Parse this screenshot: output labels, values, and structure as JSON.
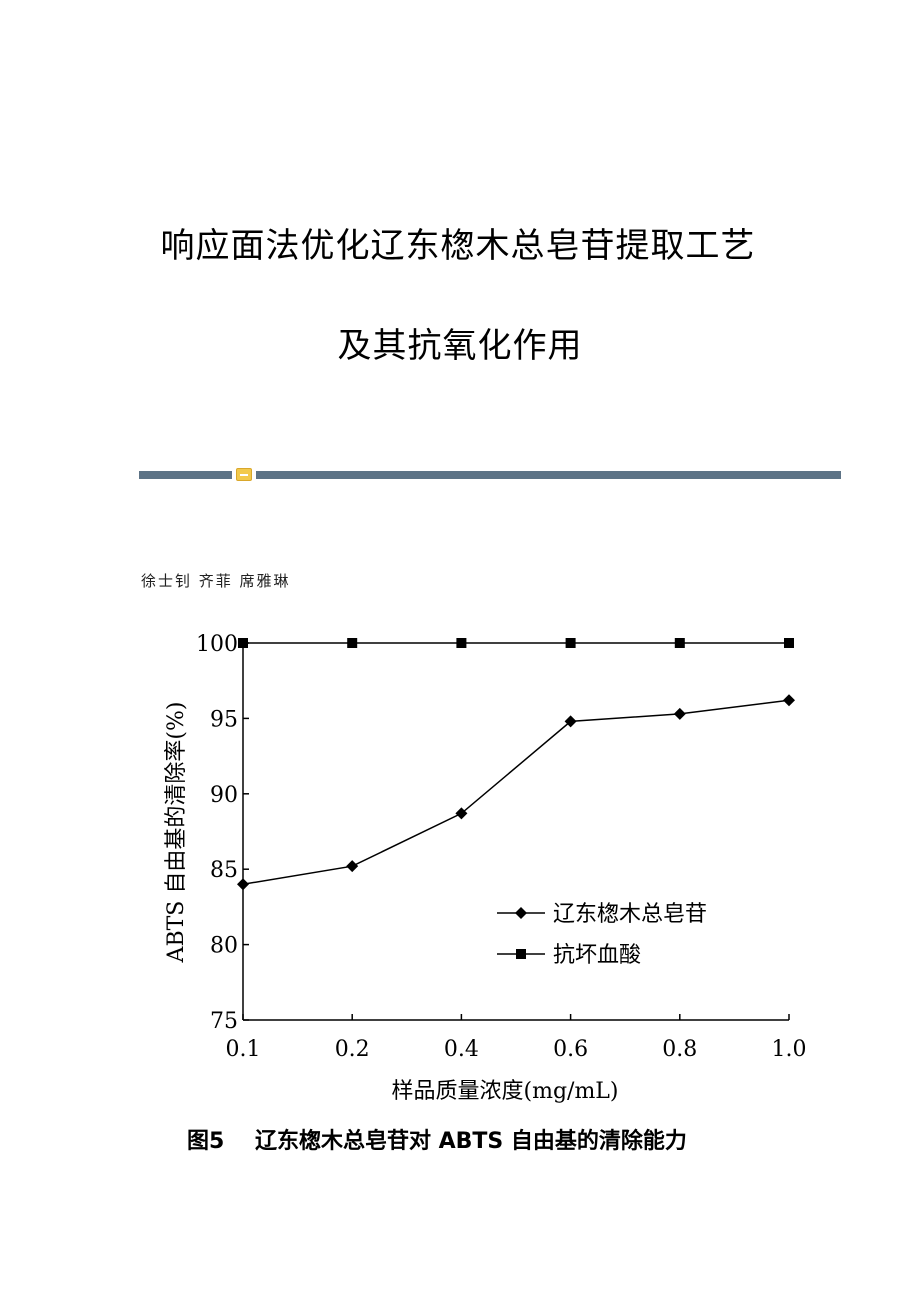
{
  "document": {
    "title_line1": "响应面法优化辽东楤木总皂苷提取工艺",
    "title_line2": "及其抗氧化作用",
    "authors": "徐士钊 齐菲 席雅琳",
    "figure_caption": "图5    辽东楤木总皂苷对 ABTS 自由基的清除能力"
  },
  "chart_data": {
    "type": "line",
    "x": [
      0.1,
      0.2,
      0.4,
      0.6,
      0.8,
      1.0
    ],
    "x_tick_labels": [
      "0.1",
      "0.2",
      "0.4",
      "0.6",
      "0.8",
      "1.0"
    ],
    "y_ticks": [
      75,
      80,
      85,
      90,
      95,
      100
    ],
    "y_tick_labels": [
      "75",
      "80",
      "85",
      "90",
      "95",
      "100"
    ],
    "ylim": [
      75,
      100
    ],
    "xlabel": "样品质量浓度(mg/mL)",
    "ylabel": "ABTS 自由基的清除率(%)",
    "x_scale": "categorical",
    "grid": false,
    "legend_position": "lower-right",
    "series": [
      {
        "name": "辽东楤木总皂苷",
        "marker": "diamond",
        "color": "#000000",
        "values": [
          84.0,
          85.2,
          88.7,
          94.8,
          95.3,
          96.2
        ]
      },
      {
        "name": "抗坏血酸",
        "marker": "square",
        "color": "#000000",
        "values": [
          100,
          100,
          100,
          100,
          100,
          100
        ]
      }
    ]
  },
  "colors": {
    "divider": "#5d7386",
    "divider_icon": "#f2c94c"
  }
}
